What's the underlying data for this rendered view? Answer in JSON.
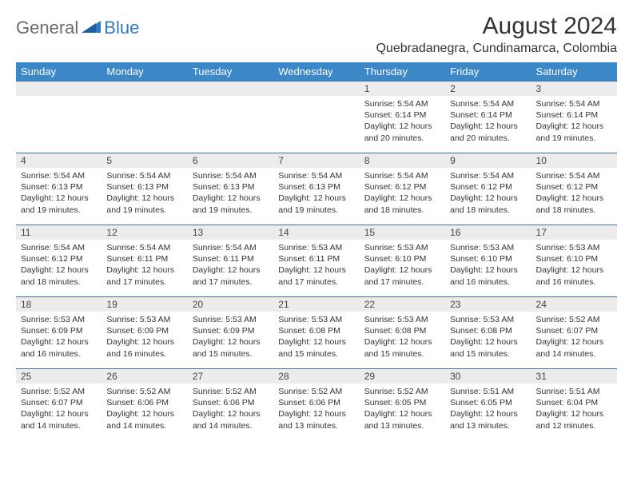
{
  "logo": {
    "general": "General",
    "blue": "Blue"
  },
  "title": "August 2024",
  "location": "Quebradanegra, Cundinamarca, Colombia",
  "colors": {
    "header_bg": "#3b87c8",
    "row_border": "#3b6fa8",
    "daynum_bg": "#ececec",
    "logo_gray": "#6b6b6b",
    "logo_blue": "#2f78c2"
  },
  "weekdays": [
    "Sunday",
    "Monday",
    "Tuesday",
    "Wednesday",
    "Thursday",
    "Friday",
    "Saturday"
  ],
  "weeks": [
    [
      null,
      null,
      null,
      null,
      {
        "n": "1",
        "sr": "5:54 AM",
        "ss": "6:14 PM",
        "dl": "12 hours and 20 minutes."
      },
      {
        "n": "2",
        "sr": "5:54 AM",
        "ss": "6:14 PM",
        "dl": "12 hours and 20 minutes."
      },
      {
        "n": "3",
        "sr": "5:54 AM",
        "ss": "6:14 PM",
        "dl": "12 hours and 19 minutes."
      }
    ],
    [
      {
        "n": "4",
        "sr": "5:54 AM",
        "ss": "6:13 PM",
        "dl": "12 hours and 19 minutes."
      },
      {
        "n": "5",
        "sr": "5:54 AM",
        "ss": "6:13 PM",
        "dl": "12 hours and 19 minutes."
      },
      {
        "n": "6",
        "sr": "5:54 AM",
        "ss": "6:13 PM",
        "dl": "12 hours and 19 minutes."
      },
      {
        "n": "7",
        "sr": "5:54 AM",
        "ss": "6:13 PM",
        "dl": "12 hours and 19 minutes."
      },
      {
        "n": "8",
        "sr": "5:54 AM",
        "ss": "6:12 PM",
        "dl": "12 hours and 18 minutes."
      },
      {
        "n": "9",
        "sr": "5:54 AM",
        "ss": "6:12 PM",
        "dl": "12 hours and 18 minutes."
      },
      {
        "n": "10",
        "sr": "5:54 AM",
        "ss": "6:12 PM",
        "dl": "12 hours and 18 minutes."
      }
    ],
    [
      {
        "n": "11",
        "sr": "5:54 AM",
        "ss": "6:12 PM",
        "dl": "12 hours and 18 minutes."
      },
      {
        "n": "12",
        "sr": "5:54 AM",
        "ss": "6:11 PM",
        "dl": "12 hours and 17 minutes."
      },
      {
        "n": "13",
        "sr": "5:54 AM",
        "ss": "6:11 PM",
        "dl": "12 hours and 17 minutes."
      },
      {
        "n": "14",
        "sr": "5:53 AM",
        "ss": "6:11 PM",
        "dl": "12 hours and 17 minutes."
      },
      {
        "n": "15",
        "sr": "5:53 AM",
        "ss": "6:10 PM",
        "dl": "12 hours and 17 minutes."
      },
      {
        "n": "16",
        "sr": "5:53 AM",
        "ss": "6:10 PM",
        "dl": "12 hours and 16 minutes."
      },
      {
        "n": "17",
        "sr": "5:53 AM",
        "ss": "6:10 PM",
        "dl": "12 hours and 16 minutes."
      }
    ],
    [
      {
        "n": "18",
        "sr": "5:53 AM",
        "ss": "6:09 PM",
        "dl": "12 hours and 16 minutes."
      },
      {
        "n": "19",
        "sr": "5:53 AM",
        "ss": "6:09 PM",
        "dl": "12 hours and 16 minutes."
      },
      {
        "n": "20",
        "sr": "5:53 AM",
        "ss": "6:09 PM",
        "dl": "12 hours and 15 minutes."
      },
      {
        "n": "21",
        "sr": "5:53 AM",
        "ss": "6:08 PM",
        "dl": "12 hours and 15 minutes."
      },
      {
        "n": "22",
        "sr": "5:53 AM",
        "ss": "6:08 PM",
        "dl": "12 hours and 15 minutes."
      },
      {
        "n": "23",
        "sr": "5:53 AM",
        "ss": "6:08 PM",
        "dl": "12 hours and 15 minutes."
      },
      {
        "n": "24",
        "sr": "5:52 AM",
        "ss": "6:07 PM",
        "dl": "12 hours and 14 minutes."
      }
    ],
    [
      {
        "n": "25",
        "sr": "5:52 AM",
        "ss": "6:07 PM",
        "dl": "12 hours and 14 minutes."
      },
      {
        "n": "26",
        "sr": "5:52 AM",
        "ss": "6:06 PM",
        "dl": "12 hours and 14 minutes."
      },
      {
        "n": "27",
        "sr": "5:52 AM",
        "ss": "6:06 PM",
        "dl": "12 hours and 14 minutes."
      },
      {
        "n": "28",
        "sr": "5:52 AM",
        "ss": "6:06 PM",
        "dl": "12 hours and 13 minutes."
      },
      {
        "n": "29",
        "sr": "5:52 AM",
        "ss": "6:05 PM",
        "dl": "12 hours and 13 minutes."
      },
      {
        "n": "30",
        "sr": "5:51 AM",
        "ss": "6:05 PM",
        "dl": "12 hours and 13 minutes."
      },
      {
        "n": "31",
        "sr": "5:51 AM",
        "ss": "6:04 PM",
        "dl": "12 hours and 12 minutes."
      }
    ]
  ],
  "labels": {
    "sunrise": "Sunrise: ",
    "sunset": "Sunset: ",
    "daylight": "Daylight: "
  }
}
